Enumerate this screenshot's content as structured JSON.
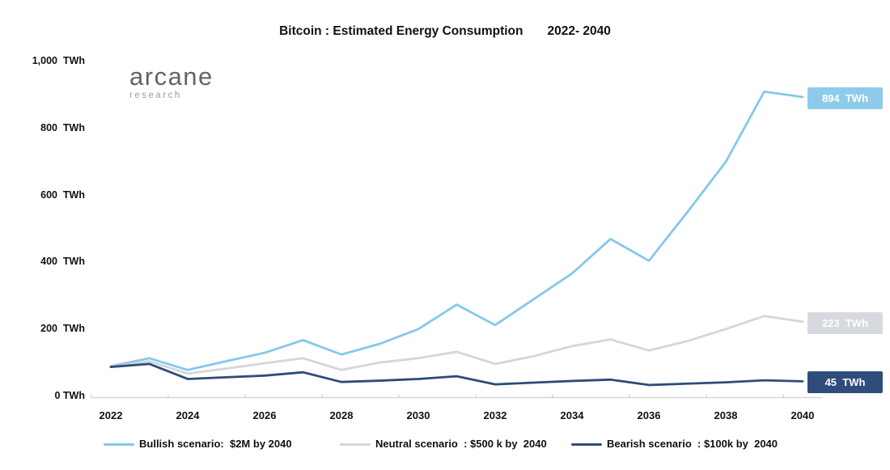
{
  "title": {
    "main": "Bitcoin : Estimated Energy Consumption",
    "range": "2022- 2040"
  },
  "logo": {
    "name": "arcane",
    "sub": "research"
  },
  "chart_data": {
    "type": "line",
    "title": "Bitcoin : Estimated Energy Consumption 2022- 2040",
    "xlabel": "",
    "ylabel": "TWh",
    "ylim": [
      0,
      1000
    ],
    "grid": false,
    "legend_position": "bottom",
    "x": [
      2022,
      2023,
      2024,
      2025,
      2026,
      2027,
      2028,
      2029,
      2030,
      2031,
      2032,
      2033,
      2034,
      2035,
      2036,
      2037,
      2038,
      2039,
      2040
    ],
    "x_tick_years": [
      2022,
      2024,
      2026,
      2028,
      2030,
      2032,
      2034,
      2036,
      2038,
      2040
    ],
    "x_tick_labels": [
      "2022",
      "2024",
      "2026",
      "2028",
      "2030",
      "2032",
      "2034",
      "2036",
      "2038",
      "2040"
    ],
    "y_ticks": [
      {
        "value": 1000,
        "label": "1,000  TWh"
      },
      {
        "value": 800,
        "label": "800  TWh"
      },
      {
        "value": 600,
        "label": "600  TWh"
      },
      {
        "value": 400,
        "label": "400  TWh"
      },
      {
        "value": 200,
        "label": "200  TWh"
      },
      {
        "value": 0,
        "label": "0 TWh"
      }
    ],
    "series": [
      {
        "name": "bullish",
        "legend": "Bullish scenario:  $2M by 2040",
        "color": "#85C8EA",
        "badge_color": "#8ECBEB",
        "end_label": "894  TWh",
        "end_value": 894,
        "values": [
          90,
          114,
          79,
          105,
          130,
          168,
          125,
          157,
          201,
          274,
          213,
          290,
          367,
          470,
          405,
          550,
          700,
          910,
          894
        ]
      },
      {
        "name": "neutral",
        "legend": "Neutral scenario  : $500 k by  2040",
        "color": "#D3D6DA",
        "badge_color": "#D6D9DD",
        "end_label": "223  TWh",
        "end_value": 223,
        "values": [
          88,
          105,
          68,
          83,
          99,
          114,
          79,
          101,
          114,
          133,
          97,
          120,
          150,
          170,
          137,
          165,
          201,
          240,
          223
        ]
      },
      {
        "name": "bearish",
        "legend": "Bearish scenario  : $100k by  2040",
        "color": "#2E4C78",
        "badge_color": "#2E4D7B",
        "end_label": "45  TWh",
        "end_value": 45,
        "values": [
          88,
          97,
          52,
          57,
          62,
          72,
          43,
          47,
          52,
          60,
          36,
          41,
          46,
          50,
          34,
          38,
          42,
          48,
          45
        ]
      }
    ],
    "axis_color": "#D6D6D6"
  }
}
